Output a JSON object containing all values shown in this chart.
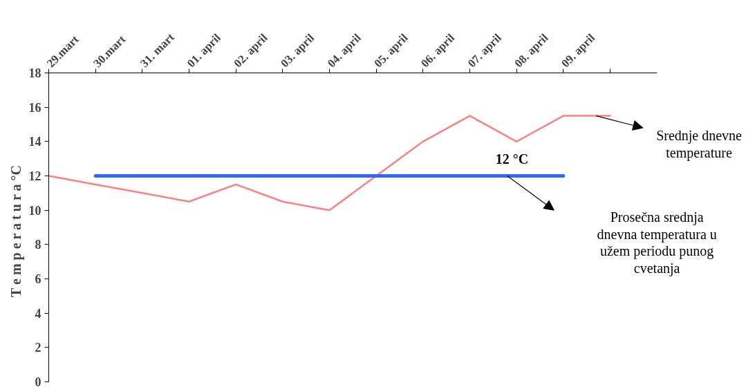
{
  "chart_data": {
    "type": "line",
    "ylabel": "T e m p e r a t u r a   °C",
    "categories": [
      "29.mart",
      "30.mart",
      "31. mart",
      "01. april",
      "02. april",
      "03. april",
      "04. april",
      "05. april",
      "06. april",
      "07. april",
      "08. april",
      "09. april",
      null
    ],
    "series": [
      {
        "name": "Srednje dnevne temperature",
        "color": "#ff7f7f",
        "values": [
          12,
          11.5,
          11,
          10.5,
          11.5,
          10.5,
          10,
          12,
          14,
          15.5,
          14,
          15.5,
          15.5
        ]
      },
      {
        "name": "Prosečna srednja dnevna temperatura u užem periodu punog cvetanja",
        "color": "#3366ff",
        "values": [
          null,
          12,
          12,
          12,
          12,
          12,
          12,
          12,
          12,
          12,
          12,
          12,
          null
        ]
      }
    ],
    "annotations": [
      {
        "text": "12 °C",
        "y": 12
      }
    ],
    "ylim": [
      0,
      18
    ],
    "yticks": [
      0,
      2,
      4,
      6,
      8,
      10,
      12,
      14,
      16,
      18
    ],
    "grid": false,
    "legend": false,
    "marker": "none",
    "line_style": "solid"
  }
}
